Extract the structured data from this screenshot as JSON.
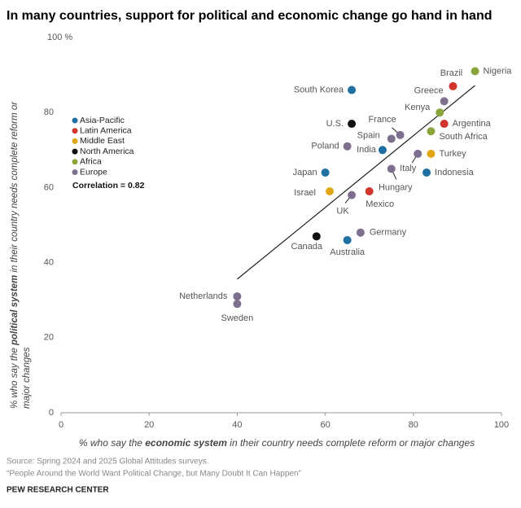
{
  "chart_data": {
    "type": "scatter",
    "title": "In many countries, support for political and economic change go hand in hand",
    "x_label": [
      "% who say the ",
      "economic system",
      " in their country needs complete reform or major changes"
    ],
    "y_label": [
      "% who say the ",
      "political system",
      " in their country needs complete reform or",
      "major changes"
    ],
    "annotation": "Correlation = 0.82",
    "xlim": [
      0,
      100
    ],
    "xticks": [
      0,
      20,
      40,
      60,
      80,
      100
    ],
    "ylim": [
      0,
      100
    ],
    "yticks": [
      0,
      20,
      40,
      60,
      80,
      {
        "value": 100,
        "label": "100 %"
      }
    ],
    "grid": false,
    "series": [
      {
        "name": "Asia-Pacific",
        "color": "#1f6fa3",
        "labels": [
          "South Korea",
          "India",
          "Japan",
          "Australia",
          "Indonesia"
        ],
        "x": [
          66,
          73,
          60,
          65,
          83
        ],
        "values": [
          86,
          70,
          64,
          46,
          64
        ]
      },
      {
        "name": "Latin America",
        "color": "#d1342a",
        "labels": [
          "Brazil",
          "Argentina",
          "Mexico"
        ],
        "x": [
          89,
          87,
          70
        ],
        "values": [
          87,
          77,
          59
        ]
      },
      {
        "name": "Middle East",
        "color": "#e0a615",
        "labels": [
          "Turkey",
          "Israel"
        ],
        "x": [
          84,
          61
        ],
        "values": [
          69,
          59
        ]
      },
      {
        "name": "North America",
        "color": "#111111",
        "labels": [
          "U.S.",
          "Canada"
        ],
        "x": [
          66,
          58
        ],
        "values": [
          77,
          47
        ]
      },
      {
        "name": "Africa",
        "color": "#8ba33b",
        "labels": [
          "Nigeria",
          "Kenya",
          "South Africa"
        ],
        "x": [
          94,
          86,
          84
        ],
        "values": [
          91,
          80,
          75
        ]
      },
      {
        "name": "Europe",
        "color": "#7d6f8e",
        "labels": [
          "Greece",
          "France",
          "Spain",
          "Poland",
          "Italy",
          "Hungary",
          "UK",
          "Germany",
          "Netherlands",
          "Sweden"
        ],
        "x": [
          87,
          77,
          75,
          65,
          81,
          75,
          66,
          68,
          40,
          40
        ],
        "values": [
          83,
          74,
          73,
          71,
          69,
          65,
          58,
          48,
          31,
          29
        ]
      }
    ],
    "trendline": {
      "x": [
        40,
        94
      ],
      "values": [
        35.6,
        87.2
      ]
    }
  },
  "footer": {
    "source": "Source: Spring 2024 and 2025 Global Attitudes surveys.",
    "report": "“People Around the World Want Political Change, but Many Doubt It Can Happen”",
    "org": "PEW RESEARCH CENTER"
  }
}
